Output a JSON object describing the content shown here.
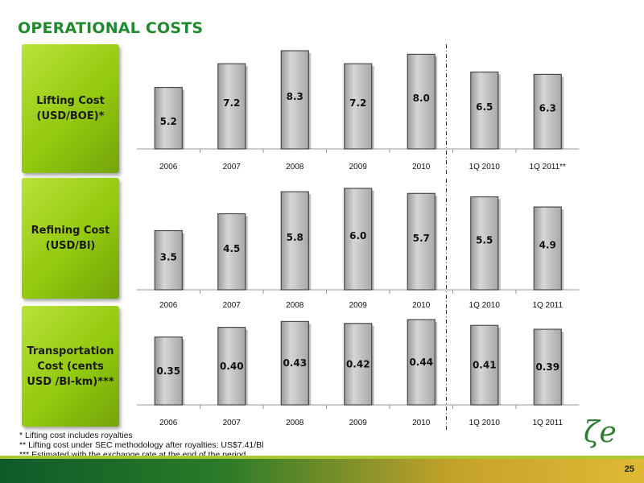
{
  "title": "OPERATIONAL COSTS",
  "page_number": "25",
  "colors": {
    "accent": "#1f8a2e",
    "bar": "#bdbdbd",
    "bar_edge": "#4a4a4a",
    "label_box": "#93c90e"
  },
  "footnotes": [
    "* Lifting cost includes royalties",
    "** Lifting cost under SEC methodology after royalties: US$7.41/Bl",
    "*** Estimated with the exchange rate at the end of the period"
  ],
  "chart_data": [
    {
      "type": "bar",
      "label": "Lifting Cost (USD/BOE)*",
      "categories": [
        "2006",
        "2007",
        "2008",
        "2009",
        "2010",
        "1Q 2010",
        "1Q 2011**"
      ],
      "values": [
        5.2,
        7.2,
        8.3,
        7.2,
        8.0,
        6.5,
        6.3
      ],
      "data_labels": [
        "5.2",
        "7.2",
        "8.3",
        "7.2",
        "8.0",
        "6.5",
        "6.3"
      ],
      "separator_after": "2010"
    },
    {
      "type": "bar",
      "label": "Refining Cost (USD/Bl)",
      "categories": [
        "2006",
        "2007",
        "2008",
        "2009",
        "2010",
        "1Q 2010",
        "1Q 2011"
      ],
      "values": [
        3.5,
        4.5,
        5.8,
        6.0,
        5.7,
        5.5,
        4.9
      ],
      "data_labels": [
        "3.5",
        "4.5",
        "5.8",
        "6.0",
        "5.7",
        "5.5",
        "4.9"
      ],
      "separator_after": "2010"
    },
    {
      "type": "bar",
      "label": "Transportation Cost (cents USD /Bl-km)***",
      "categories": [
        "2006",
        "2007",
        "2008",
        "2009",
        "2010",
        "1Q 2010",
        "1Q 2011"
      ],
      "values": [
        0.35,
        0.4,
        0.43,
        0.42,
        0.44,
        0.41,
        0.39
      ],
      "data_labels": [
        "0.35",
        "0.40",
        "0.43",
        "0.42",
        "0.44",
        "0.41",
        "0.39"
      ],
      "separator_after": "2010"
    }
  ]
}
